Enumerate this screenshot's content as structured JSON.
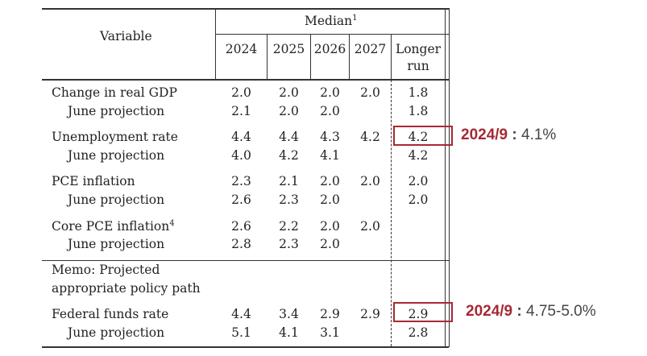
{
  "header": {
    "variable": "Variable",
    "median": "Median",
    "median_footnote": "1",
    "years": [
      "2024",
      "2025",
      "2026",
      "2027"
    ],
    "longer_run_line1": "Longer",
    "longer_run_line2": "run"
  },
  "rows": [
    {
      "label": "Change in real GDP",
      "values": [
        "2.0",
        "2.0",
        "2.0",
        "2.0",
        "1.8"
      ]
    },
    {
      "label": "June projection",
      "values": [
        "2.1",
        "2.0",
        "2.0",
        "",
        "1.8"
      ]
    },
    {
      "label": "Unemployment rate",
      "values": [
        "4.4",
        "4.4",
        "4.3",
        "4.2",
        "4.2"
      ]
    },
    {
      "label": "June projection",
      "values": [
        "4.0",
        "4.2",
        "4.1",
        "",
        "4.2"
      ]
    },
    {
      "label": "PCE inflation",
      "values": [
        "2.3",
        "2.1",
        "2.0",
        "2.0",
        "2.0"
      ]
    },
    {
      "label": "June projection",
      "values": [
        "2.6",
        "2.3",
        "2.0",
        "",
        "2.0"
      ]
    },
    {
      "label": "Core PCE inflation",
      "footnote": "4",
      "values": [
        "2.6",
        "2.2",
        "2.0",
        "2.0",
        ""
      ]
    },
    {
      "label": "June projection",
      "values": [
        "2.8",
        "2.3",
        "2.0",
        "",
        ""
      ]
    },
    {
      "label": "Federal funds rate",
      "values": [
        "4.4",
        "3.4",
        "2.9",
        "2.9",
        "2.9"
      ]
    },
    {
      "label": "June projection",
      "values": [
        "5.1",
        "4.1",
        "3.1",
        "",
        "2.8"
      ]
    }
  ],
  "memo": {
    "line1": "Memo: Projected",
    "line2": "appropriate policy path"
  },
  "annotations": [
    {
      "date": "2024/9",
      "separator": " : ",
      "value": "4.1%"
    },
    {
      "date": "2024/9",
      "separator": " : ",
      "value": "4.75-5.0%"
    }
  ],
  "colors": {
    "highlight": "#a52a36",
    "rule": "#333333"
  }
}
